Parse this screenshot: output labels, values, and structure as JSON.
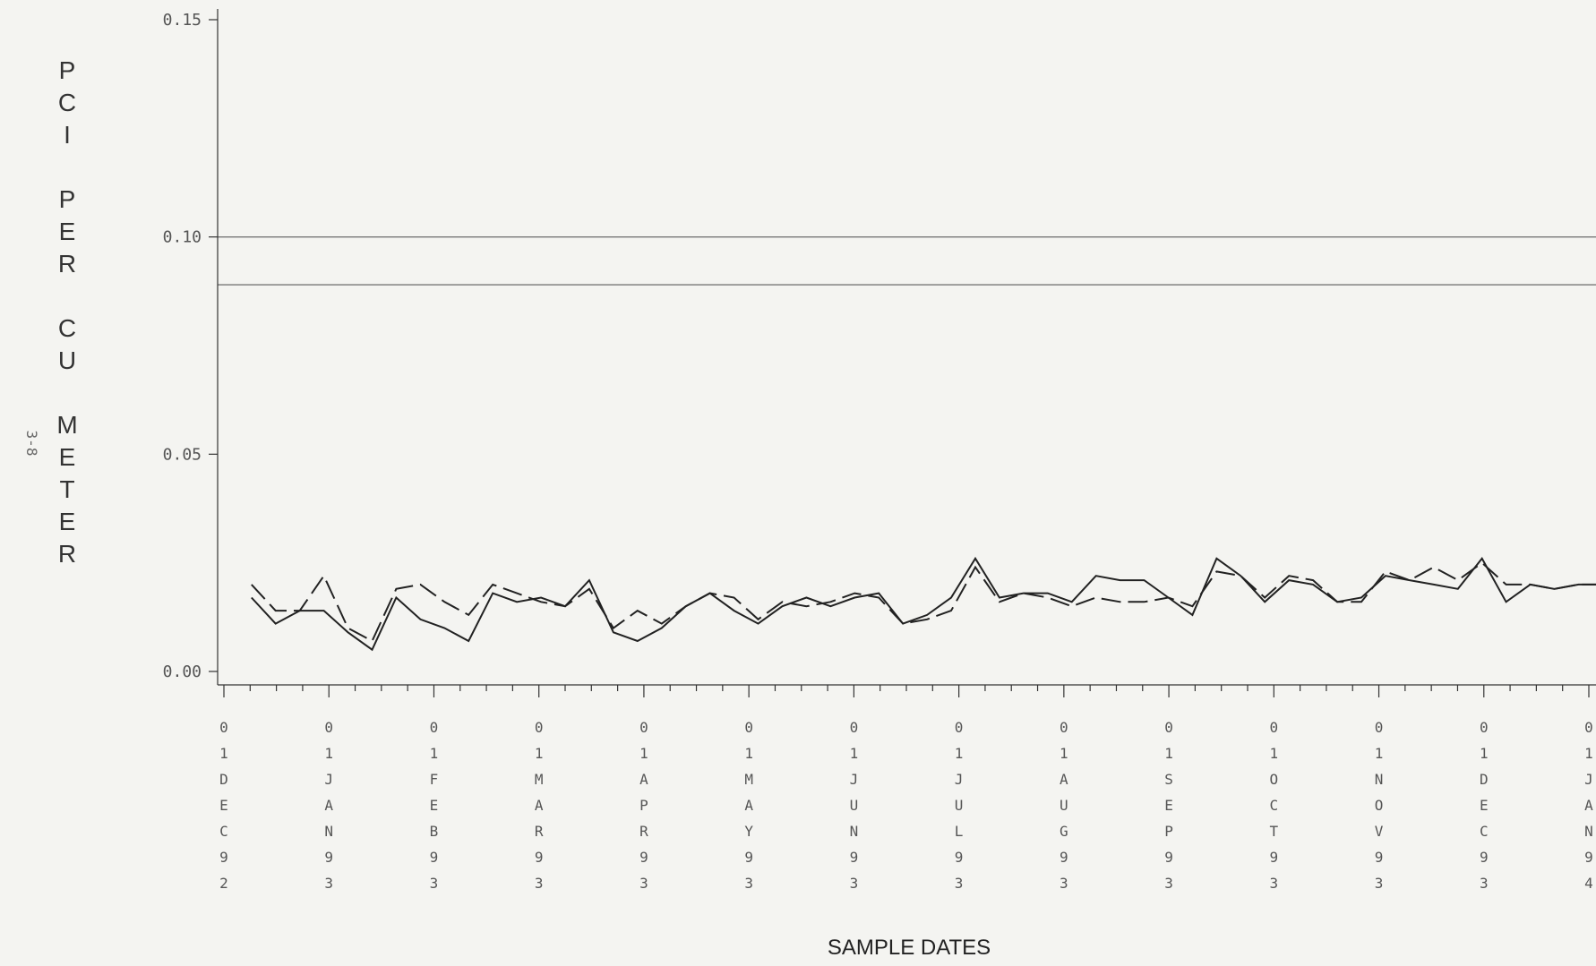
{
  "margin_note": "3-8",
  "chart_data": {
    "type": "line",
    "title": "",
    "ylabel": "PCI PER CU METER",
    "xlabel": "SAMPLE DATES",
    "ylim": [
      0,
      0.15
    ],
    "yticks": [
      "0.00",
      "0.05",
      "0.10",
      "0.15"
    ],
    "reference_lines": [
      0.1,
      0.089
    ],
    "grid": false,
    "legend": "none",
    "xtick_labels": [
      "01DEC92",
      "01JAN93",
      "01FEB93",
      "01MAR93",
      "01APR93",
      "01MAY93",
      "01JUN93",
      "01JUL93",
      "01AUG93",
      "01SEP93",
      "01OCT93",
      "01NOV93",
      "01DEC93",
      "01JAN94"
    ],
    "series": [
      {
        "style": "solid",
        "x": [
          "1992-12-09",
          "1992-12-16",
          "1992-12-23",
          "1992-12-30",
          "1993-01-06",
          "1993-01-13",
          "1993-01-20",
          "1993-01-27",
          "1993-02-03",
          "1993-02-10",
          "1993-02-17",
          "1993-02-24",
          "1993-03-03",
          "1993-03-10",
          "1993-03-17",
          "1993-03-24",
          "1993-03-31",
          "1993-04-07",
          "1993-04-14",
          "1993-04-21",
          "1993-04-28",
          "1993-05-05",
          "1993-05-12",
          "1993-05-19",
          "1993-05-26",
          "1993-06-02",
          "1993-06-09",
          "1993-06-16",
          "1993-06-23",
          "1993-06-30",
          "1993-07-07",
          "1993-07-14",
          "1993-07-21",
          "1993-07-28",
          "1993-08-04",
          "1993-08-11",
          "1993-08-18",
          "1993-08-25",
          "1993-09-01",
          "1993-09-08",
          "1993-09-15",
          "1993-09-22",
          "1993-09-29",
          "1993-10-06",
          "1993-10-13",
          "1993-10-20",
          "1993-10-27",
          "1993-11-03",
          "1993-11-10",
          "1993-11-17",
          "1993-11-24",
          "1993-12-01",
          "1993-12-08",
          "1993-12-15",
          "1993-12-22",
          "1993-12-29",
          "1994-01-05"
        ],
        "values": [
          0.017,
          0.011,
          0.014,
          0.014,
          0.009,
          0.005,
          0.017,
          0.012,
          0.01,
          0.007,
          0.018,
          0.016,
          0.017,
          0.015,
          0.021,
          0.009,
          0.007,
          0.01,
          0.015,
          0.018,
          0.014,
          0.011,
          0.015,
          0.017,
          0.015,
          0.017,
          0.018,
          0.011,
          0.013,
          0.017,
          0.026,
          0.017,
          0.018,
          0.018,
          0.016,
          0.022,
          0.021,
          0.021,
          0.017,
          0.013,
          0.026,
          0.022,
          0.016,
          0.021,
          0.02,
          0.016,
          0.017,
          0.022,
          0.021,
          0.02,
          0.019,
          0.026,
          0.016,
          0.02,
          0.019,
          0.02,
          0.02
        ]
      },
      {
        "style": "dashed",
        "x": [
          "1992-12-09",
          "1992-12-16",
          "1992-12-23",
          "1992-12-30",
          "1993-01-06",
          "1993-01-13",
          "1993-01-20",
          "1993-01-27",
          "1993-02-03",
          "1993-02-10",
          "1993-02-17",
          "1993-02-24",
          "1993-03-03",
          "1993-03-10",
          "1993-03-17",
          "1993-03-24",
          "1993-03-31",
          "1993-04-07",
          "1993-04-14",
          "1993-04-21",
          "1993-04-28",
          "1993-05-05",
          "1993-05-12",
          "1993-05-19",
          "1993-05-26",
          "1993-06-02",
          "1993-06-09",
          "1993-06-16",
          "1993-06-23",
          "1993-06-30",
          "1993-07-07",
          "1993-07-14",
          "1993-07-21",
          "1993-07-28",
          "1993-08-04",
          "1993-08-11",
          "1993-08-18",
          "1993-08-25",
          "1993-09-01",
          "1993-09-08",
          "1993-09-15",
          "1993-09-22",
          "1993-09-29",
          "1993-10-06",
          "1993-10-13",
          "1993-10-20",
          "1993-10-27",
          "1993-11-03",
          "1993-11-10",
          "1993-11-17",
          "1993-11-24",
          "1993-12-01",
          "1993-12-08",
          "1993-12-15",
          "1993-12-22",
          "1993-12-29",
          "1994-01-05"
        ],
        "values": [
          0.02,
          0.014,
          0.014,
          0.022,
          0.01,
          0.007,
          0.019,
          0.02,
          0.016,
          0.013,
          0.02,
          0.018,
          0.016,
          0.015,
          0.019,
          0.01,
          0.014,
          0.011,
          0.015,
          0.018,
          0.017,
          0.012,
          0.016,
          0.015,
          0.016,
          0.018,
          0.017,
          0.011,
          0.012,
          0.014,
          0.024,
          0.016,
          0.018,
          0.017,
          0.015,
          0.017,
          0.016,
          0.016,
          0.017,
          0.015,
          0.023,
          0.022,
          0.017,
          0.022,
          0.021,
          0.016,
          0.016,
          0.023,
          0.021,
          0.024,
          0.021,
          0.025,
          0.02,
          0.02,
          0.019,
          0.02,
          0.02
        ]
      }
    ]
  }
}
